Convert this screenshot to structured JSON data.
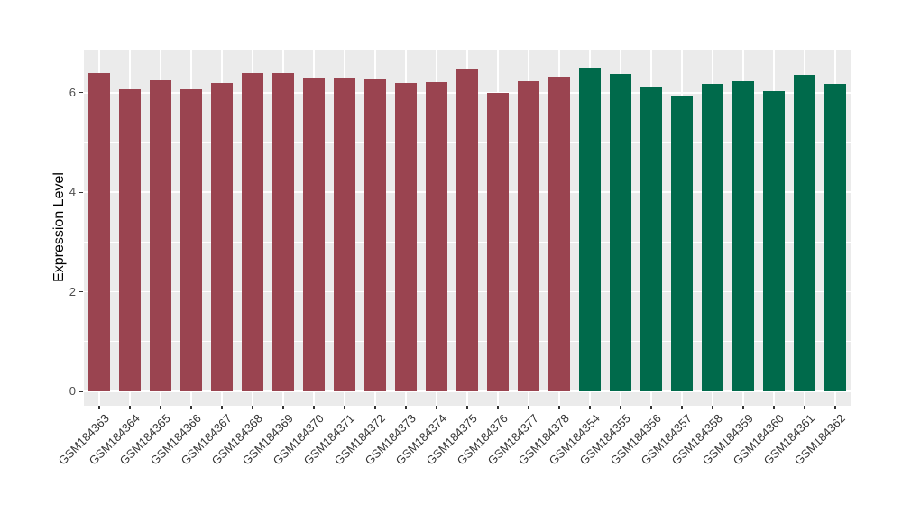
{
  "chart_data": {
    "type": "bar",
    "title": "",
    "xlabel": "",
    "ylabel": "Expression Level",
    "ylim": [
      0,
      6.86
    ],
    "yticks": [
      0,
      2,
      4,
      6
    ],
    "yticks_minor": [
      1,
      3,
      5
    ],
    "grid": "on",
    "legend": "none",
    "panel_bg": "#EBEBEB",
    "grid_color": "#FFFFFF",
    "axis_text_color": "#4d4d4d",
    "x_label_color": "#333333",
    "tick_mark_color": "#333333",
    "group_colors": {
      "group1": "#9A4450",
      "group2": "#006A4B"
    },
    "bars": [
      {
        "label": "GSM184363",
        "value": 6.4,
        "group": "group1"
      },
      {
        "label": "GSM184364",
        "value": 6.07,
        "group": "group1"
      },
      {
        "label": "GSM184365",
        "value": 6.25,
        "group": "group1"
      },
      {
        "label": "GSM184366",
        "value": 6.07,
        "group": "group1"
      },
      {
        "label": "GSM184367",
        "value": 6.2,
        "group": "group1"
      },
      {
        "label": "GSM184368",
        "value": 6.4,
        "group": "group1"
      },
      {
        "label": "GSM184369",
        "value": 6.4,
        "group": "group1"
      },
      {
        "label": "GSM184370",
        "value": 6.31,
        "group": "group1"
      },
      {
        "label": "GSM184371",
        "value": 6.29,
        "group": "group1"
      },
      {
        "label": "GSM184372",
        "value": 6.26,
        "group": "group1"
      },
      {
        "label": "GSM184373",
        "value": 6.19,
        "group": "group1"
      },
      {
        "label": "GSM184374",
        "value": 6.21,
        "group": "group1"
      },
      {
        "label": "GSM184375",
        "value": 6.46,
        "group": "group1"
      },
      {
        "label": "GSM184376",
        "value": 5.99,
        "group": "group1"
      },
      {
        "label": "GSM184377",
        "value": 6.24,
        "group": "group1"
      },
      {
        "label": "GSM184378",
        "value": 6.32,
        "group": "group1"
      },
      {
        "label": "GSM184354",
        "value": 6.5,
        "group": "group2"
      },
      {
        "label": "GSM184355",
        "value": 6.37,
        "group": "group2"
      },
      {
        "label": "GSM184356",
        "value": 6.11,
        "group": "group2"
      },
      {
        "label": "GSM184357",
        "value": 5.93,
        "group": "group2"
      },
      {
        "label": "GSM184358",
        "value": 6.17,
        "group": "group2"
      },
      {
        "label": "GSM184359",
        "value": 6.24,
        "group": "group2"
      },
      {
        "label": "GSM184360",
        "value": 6.04,
        "group": "group2"
      },
      {
        "label": "GSM184361",
        "value": 6.36,
        "group": "group2"
      },
      {
        "label": "GSM184362",
        "value": 6.17,
        "group": "group2"
      }
    ]
  }
}
